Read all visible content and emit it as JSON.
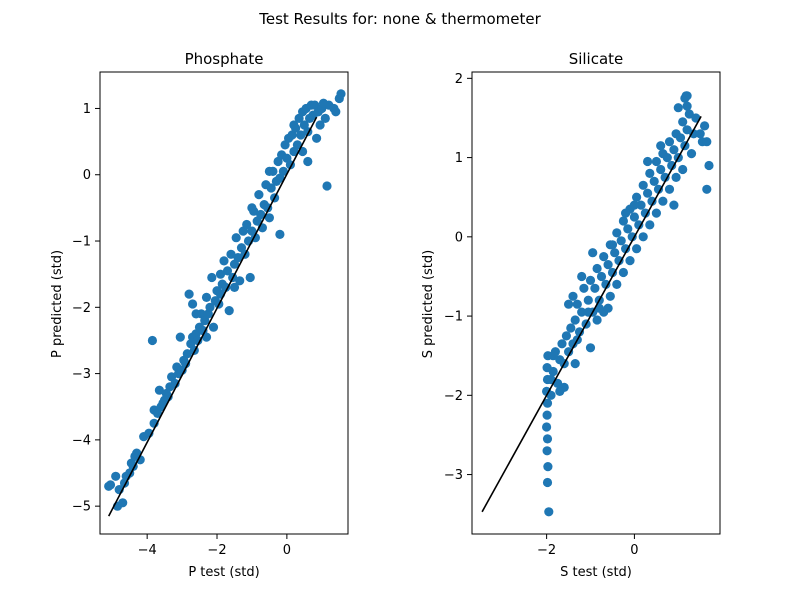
{
  "figure": {
    "title": "Test Results for: none & thermometer"
  },
  "chart_data": [
    {
      "type": "scatter",
      "title": "Phosphate",
      "xlabel": "P test (std)",
      "ylabel": "P predicted (std)",
      "xlim": [
        -5.35,
        1.75
      ],
      "ylim": [
        -5.42,
        1.55
      ],
      "xticks": [
        -4,
        -2,
        0
      ],
      "yticks": [
        -5,
        -4,
        -3,
        -2,
        -1,
        0,
        1
      ],
      "tick_labels_x": [
        "−4",
        "−2",
        "0"
      ],
      "tick_labels_y": [
        "−5",
        "−4",
        "−3",
        "−2",
        "−1",
        "0",
        "1"
      ],
      "marker_color": "#1f77b4",
      "line_color": "#000000",
      "fit_line": [
        [
          -5.1,
          -5.15
        ],
        [
          0.85,
          0.87
        ]
      ],
      "points": [
        [
          -5.1,
          -4.7
        ],
        [
          -5.05,
          -4.68
        ],
        [
          -4.9,
          -4.55
        ],
        [
          -4.8,
          -4.75
        ],
        [
          -4.85,
          -5.0
        ],
        [
          -4.7,
          -4.95
        ],
        [
          -4.65,
          -4.65
        ],
        [
          -4.6,
          -4.55
        ],
        [
          -4.5,
          -4.5
        ],
        [
          -4.45,
          -4.35
        ],
        [
          -4.4,
          -4.4
        ],
        [
          -4.35,
          -4.25
        ],
        [
          -4.3,
          -4.2
        ],
        [
          -4.2,
          -4.3
        ],
        [
          -4.1,
          -3.95
        ],
        [
          -3.95,
          -3.9
        ],
        [
          -3.85,
          -2.5
        ],
        [
          -3.8,
          -3.75
        ],
        [
          -3.8,
          -3.55
        ],
        [
          -3.7,
          -3.6
        ],
        [
          -3.65,
          -3.25
        ],
        [
          -3.6,
          -3.5
        ],
        [
          -3.55,
          -3.45
        ],
        [
          -3.5,
          -3.4
        ],
        [
          -3.45,
          -3.3
        ],
        [
          -3.4,
          -3.35
        ],
        [
          -3.35,
          -3.2
        ],
        [
          -3.3,
          -3.05
        ],
        [
          -3.2,
          -3.15
        ],
        [
          -3.15,
          -2.9
        ],
        [
          -3.1,
          -3.0
        ],
        [
          -3.05,
          -2.45
        ],
        [
          -3.0,
          -2.95
        ],
        [
          -2.95,
          -2.8
        ],
        [
          -2.9,
          -2.85
        ],
        [
          -2.85,
          -2.7
        ],
        [
          -2.8,
          -1.8
        ],
        [
          -2.75,
          -2.55
        ],
        [
          -2.7,
          -2.45
        ],
        [
          -2.7,
          -1.95
        ],
        [
          -2.65,
          -2.65
        ],
        [
          -2.6,
          -2.4
        ],
        [
          -2.55,
          -2.5
        ],
        [
          -2.5,
          -2.3
        ],
        [
          -2.45,
          -2.1
        ],
        [
          -2.4,
          -2.35
        ],
        [
          -2.35,
          -2.2
        ],
        [
          -2.3,
          -1.85
        ],
        [
          -2.3,
          -2.45
        ],
        [
          -2.25,
          -2.1
        ],
        [
          -2.2,
          -2.0
        ],
        [
          -2.15,
          -1.55
        ],
        [
          -2.1,
          -2.3
        ],
        [
          -2.05,
          -1.9
        ],
        [
          -2.0,
          -1.75
        ],
        [
          -1.95,
          -1.95
        ],
        [
          -1.9,
          -1.5
        ],
        [
          -1.9,
          -1.8
        ],
        [
          -1.85,
          -1.65
        ],
        [
          -1.8,
          -1.3
        ],
        [
          -1.75,
          -1.7
        ],
        [
          -1.7,
          -1.45
        ],
        [
          -1.65,
          -2.05
        ],
        [
          -1.6,
          -1.2
        ],
        [
          -1.55,
          -1.55
        ],
        [
          -1.5,
          -1.35
        ],
        [
          -1.45,
          -0.95
        ],
        [
          -1.4,
          -1.25
        ],
        [
          -1.35,
          -1.6
        ],
        [
          -1.3,
          -1.1
        ],
        [
          -1.25,
          -0.85
        ],
        [
          -1.2,
          -1.2
        ],
        [
          -1.15,
          -0.75
        ],
        [
          -1.1,
          -1.0
        ],
        [
          -1.05,
          -1.55
        ],
        [
          -1.0,
          -0.85
        ],
        [
          -0.95,
          -0.55
        ],
        [
          -0.9,
          -0.95
        ],
        [
          -0.85,
          -0.7
        ],
        [
          -0.8,
          -0.3
        ],
        [
          -0.75,
          -0.6
        ],
        [
          -0.7,
          -0.8
        ],
        [
          -0.65,
          -0.45
        ],
        [
          -0.6,
          -0.15
        ],
        [
          -0.55,
          -0.5
        ],
        [
          -0.5,
          -0.65
        ],
        [
          -0.45,
          -0.2
        ],
        [
          -0.4,
          0.05
        ],
        [
          -0.35,
          -0.35
        ],
        [
          -0.3,
          -0.1
        ],
        [
          -0.25,
          0.2
        ],
        [
          -0.2,
          -0.05
        ],
        [
          -0.2,
          -0.9
        ],
        [
          -0.15,
          0.3
        ],
        [
          -0.1,
          0.05
        ],
        [
          -0.05,
          0.45
        ],
        [
          0.0,
          0.25
        ],
        [
          0.05,
          0.55
        ],
        [
          0.1,
          0.15
        ],
        [
          0.15,
          0.6
        ],
        [
          0.2,
          0.35
        ],
        [
          0.25,
          0.7
        ],
        [
          0.3,
          0.45
        ],
        [
          0.35,
          0.85
        ],
        [
          0.4,
          0.6
        ],
        [
          0.45,
          0.95
        ],
        [
          0.5,
          0.75
        ],
        [
          0.55,
          1.0
        ],
        [
          0.6,
          0.65
        ],
        [
          0.6,
          0.2
        ],
        [
          0.65,
          0.85
        ],
        [
          0.7,
          1.05
        ],
        [
          0.75,
          0.9
        ],
        [
          0.8,
          1.05
        ],
        [
          0.85,
          0.55
        ],
        [
          0.9,
          0.95
        ],
        [
          0.95,
          0.75
        ],
        [
          1.0,
          1.0
        ],
        [
          1.1,
          0.85
        ],
        [
          1.15,
          -0.17
        ],
        [
          1.2,
          1.05
        ],
        [
          1.35,
          1.0
        ],
        [
          1.5,
          1.15
        ],
        [
          1.55,
          1.22
        ],
        [
          1.4,
          0.95
        ],
        [
          1.05,
          1.08
        ],
        [
          0.45,
          0.35
        ],
        [
          -0.5,
          0.05
        ],
        [
          -1.5,
          -1.7
        ],
        [
          -2.6,
          -2.1
        ],
        [
          -1.0,
          -0.5
        ],
        [
          0.2,
          0.75
        ]
      ]
    },
    {
      "type": "scatter",
      "title": "Silicate",
      "xlabel": "S test (std)",
      "ylabel": "S predicted (std)",
      "xlim": [
        -3.7,
        1.95
      ],
      "ylim": [
        -3.75,
        2.08
      ],
      "xticks": [
        -2,
        0
      ],
      "yticks": [
        -3,
        -2,
        -1,
        0,
        1,
        2
      ],
      "tick_labels_x": [
        "−2",
        "0"
      ],
      "tick_labels_y": [
        "−3",
        "−2",
        "−1",
        "0",
        "1",
        "2"
      ],
      "marker_color": "#1f77b4",
      "line_color": "#000000",
      "fit_line": [
        [
          -3.47,
          -3.47
        ],
        [
          1.52,
          1.52
        ]
      ],
      "points": [
        [
          -1.95,
          -3.47
        ],
        [
          -1.98,
          -3.1
        ],
        [
          -1.97,
          -2.9
        ],
        [
          -1.99,
          -2.7
        ],
        [
          -1.98,
          -2.55
        ],
        [
          -2.0,
          -2.4
        ],
        [
          -1.99,
          -2.25
        ],
        [
          -1.98,
          -2.1
        ],
        [
          -2.0,
          -1.95
        ],
        [
          -1.98,
          -1.8
        ],
        [
          -1.99,
          -1.65
        ],
        [
          -1.97,
          -1.5
        ],
        [
          -1.9,
          -2.0
        ],
        [
          -1.85,
          -1.7
        ],
        [
          -1.8,
          -1.45
        ],
        [
          -1.75,
          -1.85
        ],
        [
          -1.7,
          -1.55
        ],
        [
          -1.65,
          -1.35
        ],
        [
          -1.6,
          -1.6
        ],
        [
          -1.55,
          -1.25
        ],
        [
          -1.5,
          -1.45
        ],
        [
          -1.45,
          -1.15
        ],
        [
          -1.4,
          -0.75
        ],
        [
          -1.4,
          -1.35
        ],
        [
          -1.35,
          -1.05
        ],
        [
          -1.3,
          -0.85
        ],
        [
          -1.25,
          -1.2
        ],
        [
          -1.2,
          -0.95
        ],
        [
          -1.15,
          -0.65
        ],
        [
          -1.1,
          -1.1
        ],
        [
          -1.05,
          -0.8
        ],
        [
          -1.0,
          -0.55
        ],
        [
          -1.0,
          -1.4
        ],
        [
          -0.95,
          -0.95
        ],
        [
          -0.9,
          -0.65
        ],
        [
          -0.85,
          -0.4
        ],
        [
          -0.85,
          -1.05
        ],
        [
          -0.8,
          -0.8
        ],
        [
          -0.75,
          -0.5
        ],
        [
          -0.7,
          -0.25
        ],
        [
          -0.7,
          -0.95
        ],
        [
          -0.65,
          -0.6
        ],
        [
          -0.6,
          -0.35
        ],
        [
          -0.55,
          -0.1
        ],
        [
          -0.55,
          -0.75
        ],
        [
          -0.5,
          -0.45
        ],
        [
          -0.45,
          -0.2
        ],
        [
          -0.4,
          0.05
        ],
        [
          -0.4,
          -0.6
        ],
        [
          -0.35,
          -0.3
        ],
        [
          -0.3,
          -0.05
        ],
        [
          -0.25,
          0.2
        ],
        [
          -0.25,
          -0.45
        ],
        [
          -0.2,
          -0.15
        ],
        [
          -0.15,
          0.1
        ],
        [
          -0.1,
          0.35
        ],
        [
          -0.1,
          -0.3
        ],
        [
          -0.05,
          0.0
        ],
        [
          0.0,
          0.25
        ],
        [
          0.05,
          0.5
        ],
        [
          0.05,
          -0.15
        ],
        [
          0.1,
          0.15
        ],
        [
          0.15,
          0.4
        ],
        [
          0.2,
          0.65
        ],
        [
          0.2,
          0.0
        ],
        [
          0.25,
          0.3
        ],
        [
          0.3,
          0.55
        ],
        [
          0.35,
          0.8
        ],
        [
          0.35,
          0.15
        ],
        [
          0.4,
          0.45
        ],
        [
          0.45,
          0.7
        ],
        [
          0.5,
          0.95
        ],
        [
          0.5,
          0.3
        ],
        [
          0.55,
          0.6
        ],
        [
          0.6,
          0.85
        ],
        [
          0.65,
          1.05
        ],
        [
          0.65,
          0.45
        ],
        [
          0.7,
          0.75
        ],
        [
          0.75,
          1.0
        ],
        [
          0.8,
          1.2
        ],
        [
          0.8,
          0.6
        ],
        [
          0.85,
          0.9
        ],
        [
          0.9,
          1.1
        ],
        [
          0.95,
          1.3
        ],
        [
          0.95,
          0.75
        ],
        [
          1.0,
          1.0
        ],
        [
          1.05,
          1.25
        ],
        [
          1.1,
          1.45
        ],
        [
          1.1,
          0.85
        ],
        [
          1.15,
          1.15
        ],
        [
          1.2,
          1.35
        ],
        [
          1.25,
          1.55
        ],
        [
          1.3,
          1.05
        ],
        [
          1.35,
          1.3
        ],
        [
          1.4,
          1.5
        ],
        [
          1.5,
          1.3
        ],
        [
          1.55,
          1.2
        ],
        [
          1.6,
          1.4
        ],
        [
          1.65,
          1.2
        ],
        [
          1.7,
          0.9
        ],
        [
          1.65,
          0.6
        ],
        [
          1.0,
          1.63
        ],
        [
          1.15,
          1.75
        ],
        [
          1.18,
          1.78
        ],
        [
          1.2,
          1.78
        ],
        [
          1.2,
          1.65
        ],
        [
          0.9,
          0.4
        ],
        [
          -0.8,
          -0.9
        ],
        [
          -1.6,
          -1.9
        ],
        [
          -1.7,
          -1.95
        ],
        [
          -1.3,
          -1.3
        ],
        [
          -1.05,
          -0.95
        ],
        [
          -0.6,
          -0.9
        ],
        [
          0.0,
          0.4
        ],
        [
          0.3,
          0.95
        ],
        [
          -0.2,
          0.3
        ],
        [
          -0.5,
          -0.1
        ],
        [
          -1.2,
          -0.5
        ],
        [
          -1.5,
          -0.85
        ],
        [
          0.6,
          1.15
        ],
        [
          -0.95,
          -0.2
        ],
        [
          -1.35,
          -1.6
        ],
        [
          -1.85,
          -1.5
        ],
        [
          -1.9,
          -1.8
        ]
      ]
    }
  ]
}
